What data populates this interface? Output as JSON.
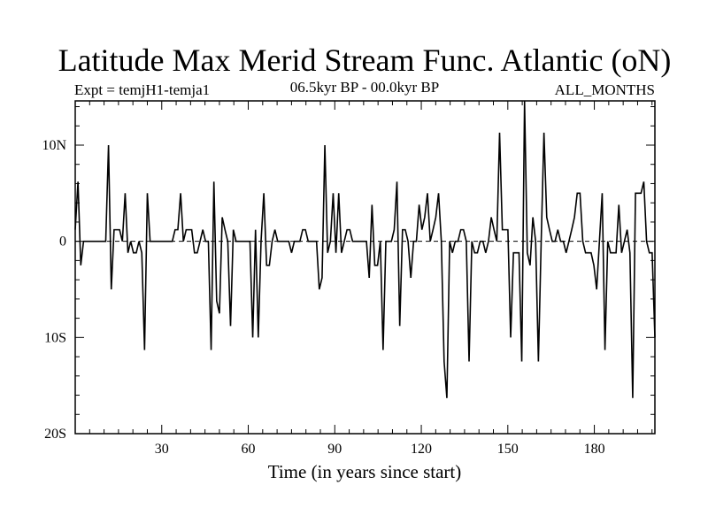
{
  "chart_data": {
    "type": "line",
    "title": "Latitude Max Merid Stream Func. Atlantic (oN)",
    "subtitle_left": "Expt = temjH1-temja1",
    "subtitle_center": "06.5kyr BP - 00.0kyr BP",
    "subtitle_right": "ALL_MONTHS",
    "xlabel": "Time (in years since start)",
    "ylabel": "",
    "xlim": [
      0,
      201
    ],
    "ylim": [
      -20,
      14.6
    ],
    "xticks": [
      30,
      60,
      90,
      120,
      150,
      180
    ],
    "xtick_labels": [
      "30",
      "60",
      "90",
      "120",
      "150",
      "180"
    ],
    "yticks": [
      10,
      0,
      -10,
      -20
    ],
    "ytick_labels": [
      "10N",
      "0",
      "10S",
      "20S"
    ],
    "zero_line": "dashed",
    "grid": false,
    "series": [
      {
        "values": [
          1.2,
          6.2,
          -2.5,
          0,
          0,
          0,
          0,
          0,
          0,
          0,
          0,
          0,
          10,
          -5,
          1.2,
          1.2,
          1.2,
          0,
          5,
          -1.2,
          0,
          -1.2,
          -1.2,
          0,
          -1.2,
          -11.3,
          5,
          0,
          0,
          0,
          0,
          0,
          0,
          0,
          0,
          0,
          1.2,
          1.2,
          5,
          0,
          1.2,
          1.2,
          1.2,
          -1.2,
          -1.2,
          0,
          1.2,
          0,
          0,
          -11.3,
          6.2,
          -6.2,
          -7.5,
          2.5,
          1.2,
          0,
          -8.8,
          1.2,
          0,
          0,
          0,
          0,
          0,
          0,
          -10,
          1.2,
          -10,
          0,
          5,
          -2.5,
          -2.5,
          0,
          1.2,
          0,
          0,
          0,
          0,
          0,
          -1.2,
          0,
          0,
          0,
          1.2,
          1.2,
          0,
          0,
          0,
          0,
          -5,
          -3.8,
          10,
          -1.2,
          0,
          5,
          -1.2,
          5,
          -1.2,
          0,
          1.2,
          1.2,
          0,
          0,
          0,
          0,
          0,
          0,
          -3.8,
          3.8,
          -2.5,
          -2.5,
          0,
          -11.3,
          0,
          0,
          0,
          1.2,
          6.2,
          -8.8,
          1.2,
          1.2,
          0,
          -3.8,
          0,
          0,
          3.8,
          1.2,
          2.5,
          5,
          0,
          1.2,
          2.5,
          5,
          0,
          -12.5,
          -16.3,
          0,
          -1.2,
          0,
          0,
          1.2,
          1.2,
          0,
          -12.5,
          0,
          -1.2,
          -1.2,
          0,
          0,
          -1.2,
          0,
          2.5,
          1.2,
          0,
          11.3,
          1.2,
          1.2,
          1.2,
          -10,
          -1.2,
          -1.2,
          -1.2,
          -12.5,
          15,
          -1.2,
          -2.5,
          2.5,
          0,
          -12.5,
          0,
          11.3,
          2.5,
          1.2,
          0,
          0,
          1.2,
          0,
          0,
          -1.2,
          0,
          1.2,
          2.5,
          5,
          5,
          0,
          -1.2,
          -1.2,
          -1.2,
          -2.5,
          -5,
          0,
          5,
          -11.3,
          0,
          -1.2,
          -1.2,
          -1.2,
          3.8,
          -1.2,
          0,
          1.2,
          -1.2,
          -16.3,
          5,
          5,
          5,
          6.2,
          0,
          -1.2,
          -1.2,
          -10
        ]
      }
    ]
  }
}
